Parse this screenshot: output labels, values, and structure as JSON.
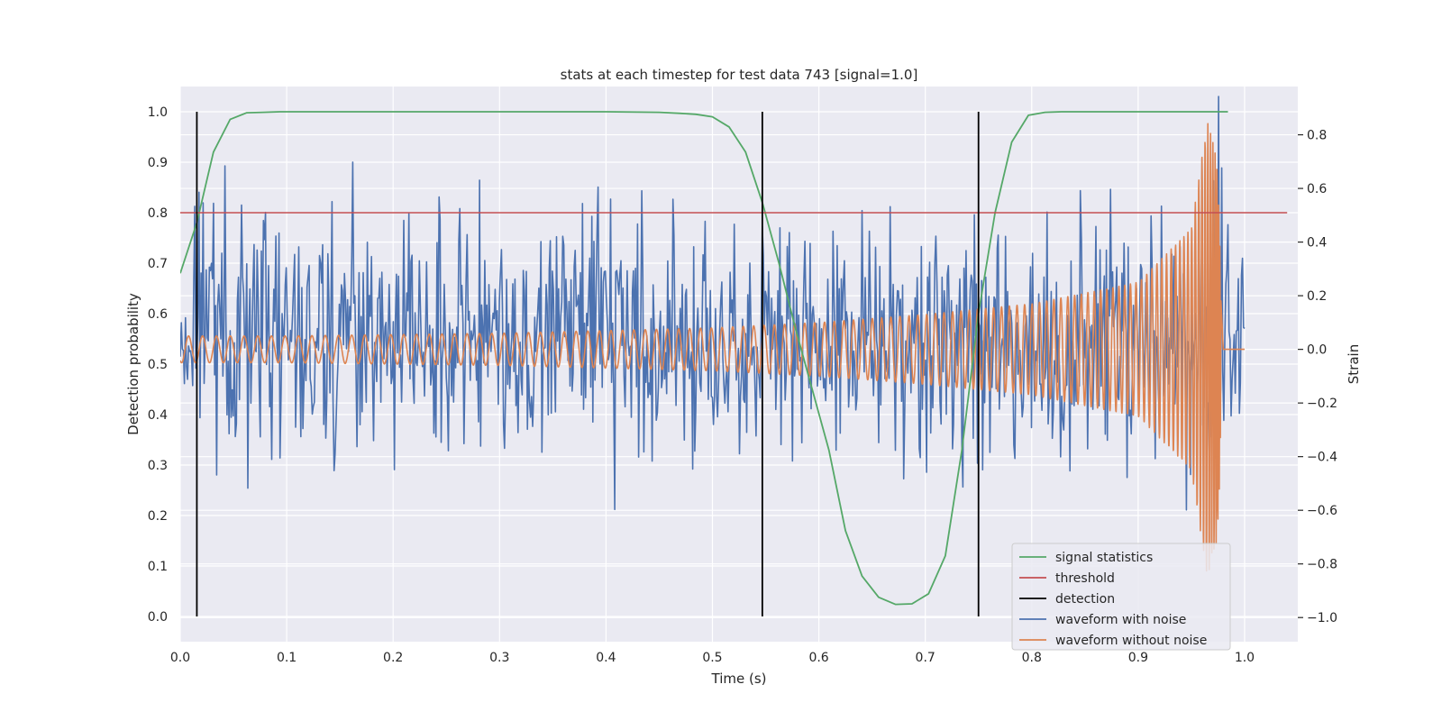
{
  "chart_data": {
    "type": "line",
    "title": "stats at each timestep for test data 743 [signal=1.0]",
    "xlabel": "Time (s)",
    "ylabel": "Detection probability",
    "y2label": "Strain",
    "xlim": [
      0.0,
      1.05
    ],
    "ylim": [
      -0.05,
      1.05
    ],
    "y2lim": [
      -1.09,
      0.98
    ],
    "x_ticks": [
      "0.0",
      "0.1",
      "0.2",
      "0.3",
      "0.4",
      "0.5",
      "0.6",
      "0.7",
      "0.8",
      "0.9",
      "1.0"
    ],
    "y_ticks": [
      "0.0",
      "0.1",
      "0.2",
      "0.3",
      "0.4",
      "0.5",
      "0.6",
      "0.7",
      "0.8",
      "0.9",
      "1.0"
    ],
    "y2_ticks": [
      "−1.0",
      "−0.8",
      "−0.6",
      "−0.4",
      "−0.2",
      "0.0",
      "0.2",
      "0.4",
      "0.6",
      "0.8"
    ],
    "grid": true,
    "legend_position": "lower right",
    "colors": {
      "signal_statistics": "#55a868",
      "threshold": "#c44e52",
      "detection": "#000000",
      "waveform_with_noise": "#4c72b0",
      "waveform_without_noise": "#dd8452",
      "plot_background": "#eaeaf2",
      "grid": "#ffffff"
    },
    "series": [
      {
        "name": "signal statistics",
        "axis": "left",
        "x": [
          0.0,
          0.0156,
          0.0312,
          0.0469,
          0.0625,
          0.0781,
          0.0938,
          0.1094,
          0.125,
          0.2,
          0.3,
          0.4,
          0.45,
          0.4688,
          0.4844,
          0.5,
          0.5156,
          0.5312,
          0.5469,
          0.5625,
          0.5781,
          0.5938,
          0.6094,
          0.625,
          0.6406,
          0.6562,
          0.6719,
          0.6875,
          0.7031,
          0.7188,
          0.7344,
          0.75,
          0.7656,
          0.7812,
          0.7969,
          0.8125,
          0.8281,
          0.85,
          0.9,
          0.95,
          0.9844
        ],
        "values": [
          0.68,
          0.78,
          0.92,
          0.985,
          0.998,
          0.999,
          1.0,
          1.0,
          1.0,
          1.0,
          1.0,
          1.0,
          0.999,
          0.997,
          0.995,
          0.99,
          0.97,
          0.92,
          0.82,
          0.7,
          0.57,
          0.45,
          0.33,
          0.17,
          0.08,
          0.038,
          0.024,
          0.025,
          0.045,
          0.12,
          0.33,
          0.6,
          0.8,
          0.94,
          0.993,
          0.999,
          1.0,
          1.0,
          1.0,
          1.0,
          1.0
        ]
      },
      {
        "name": "threshold",
        "axis": "left",
        "x": [
          0.0,
          1.04
        ],
        "values": [
          0.8,
          0.8
        ]
      },
      {
        "name": "detection",
        "axis": "left",
        "x": [
          0.0156,
          0.5469,
          0.75
        ],
        "values": [
          1.0,
          1.0,
          1.0
        ]
      },
      {
        "name": "waveform with noise",
        "axis": "right",
        "sample_rate": 1024,
        "x_range": [
          0.0,
          1.0
        ],
        "amplitude_range": [
          -1.0,
          0.95
        ]
      },
      {
        "name": "waveform without noise",
        "axis": "right",
        "x": [
          0.0,
          0.1,
          0.2,
          0.3,
          0.4,
          0.5,
          0.6,
          0.7,
          0.8,
          0.9,
          0.95,
          0.965,
          0.975,
          0.98,
          1.0
        ],
        "amplitude_envelope": [
          0.05,
          0.05,
          0.055,
          0.06,
          0.07,
          0.08,
          0.1,
          0.13,
          0.17,
          0.25,
          0.45,
          0.85,
          0.7,
          0.0,
          0.0
        ]
      }
    ]
  }
}
